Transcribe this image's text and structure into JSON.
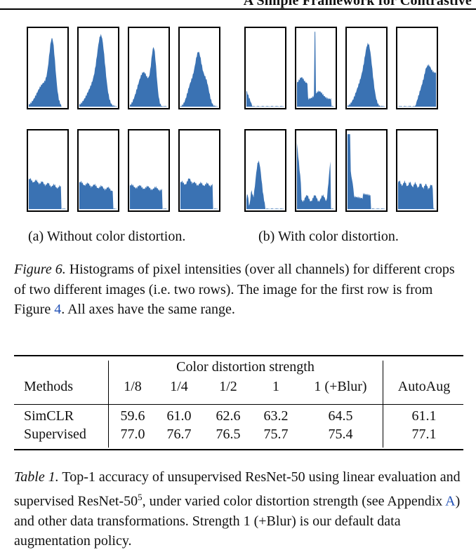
{
  "running_head": "A Simple Framework for Contrastive",
  "figure": {
    "subcaption_a": "(a) Without color distortion.",
    "subcaption_b": "(b) With color distortion.",
    "caption_label": "Figure 6.",
    "caption_text_1": " Histograms of pixel intensities (over all channels) for different crops of two different images (i.e. two rows). The image for the first row is from Figure ",
    "caption_ref": "4",
    "caption_text_2": ". All axes have the same range.",
    "bar_color": "#3a72b3"
  },
  "table": {
    "group_header": "Color distortion strength",
    "columns": [
      "Methods",
      "1/8",
      "1/4",
      "1/2",
      "1",
      "1 (+Blur)",
      "AutoAug"
    ],
    "rows": [
      {
        "method": "SimCLR",
        "values": [
          "59.6",
          "61.0",
          "62.6",
          "63.2",
          "64.5",
          "61.1"
        ]
      },
      {
        "method": "Supervised",
        "values": [
          "77.0",
          "76.7",
          "76.5",
          "75.7",
          "75.4",
          "77.1"
        ]
      }
    ],
    "caption_label": "Table 1.",
    "caption_text_1": " Top-1 accuracy of unsupervised ResNet-50 using linear evaluation and supervised ResNet-50",
    "caption_sup": "5",
    "caption_text_2": ", under varied color distortion strength (see Appendix ",
    "caption_ref": "A",
    "caption_text_3": ") and other data transformations. Strength 1 (+Blur) is our default data augmentation policy."
  }
}
